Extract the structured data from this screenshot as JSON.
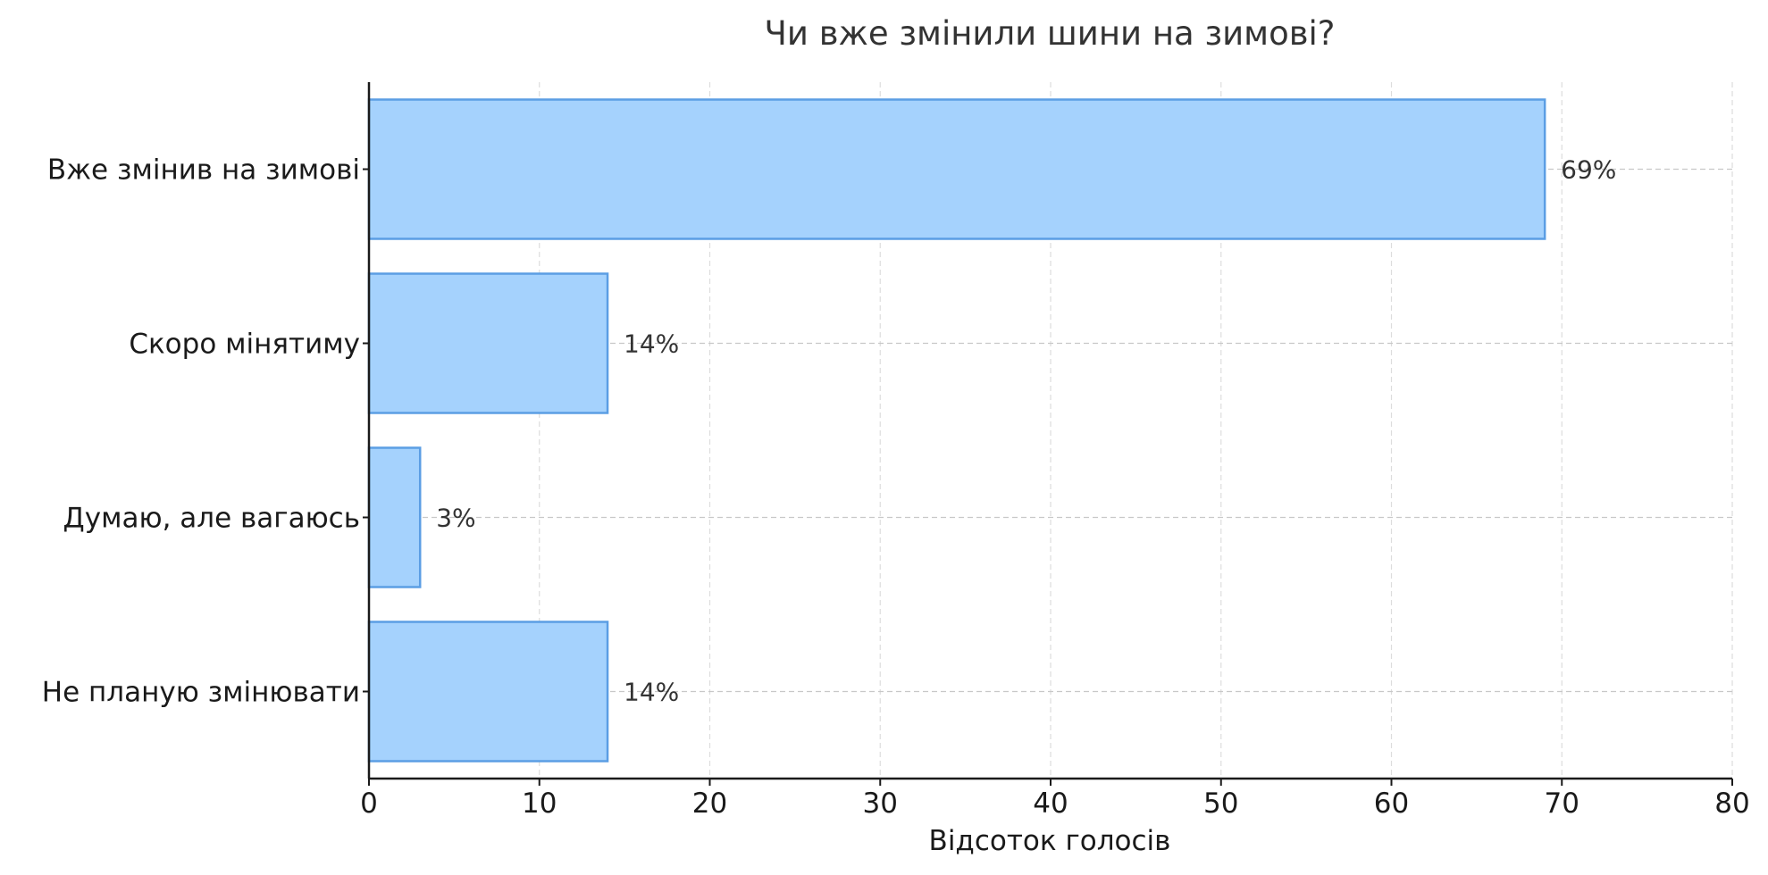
{
  "chart_data": {
    "type": "bar",
    "orientation": "horizontal",
    "title": "Чи вже змінили шини на зимові?",
    "xlabel": "Відсоток голосів",
    "ylabel": "",
    "categories": [
      "Вже змінив на зимові",
      "Скоро мінятиму",
      "Думаю, але вагаюсь",
      "Не планую змінювати"
    ],
    "values": [
      69,
      14,
      3,
      14
    ],
    "value_labels": [
      "69%",
      "14%",
      "3%",
      "14%"
    ],
    "xlim": [
      0,
      80
    ],
    "xticks": [
      0,
      10,
      20,
      30,
      40,
      50,
      60,
      70,
      80
    ],
    "xtick_labels": [
      "0",
      "10",
      "20",
      "30",
      "40",
      "50",
      "60",
      "70",
      "80"
    ],
    "grid": true,
    "bar_fill": "#a5d2fd",
    "bar_edge": "#5b9ee4"
  }
}
